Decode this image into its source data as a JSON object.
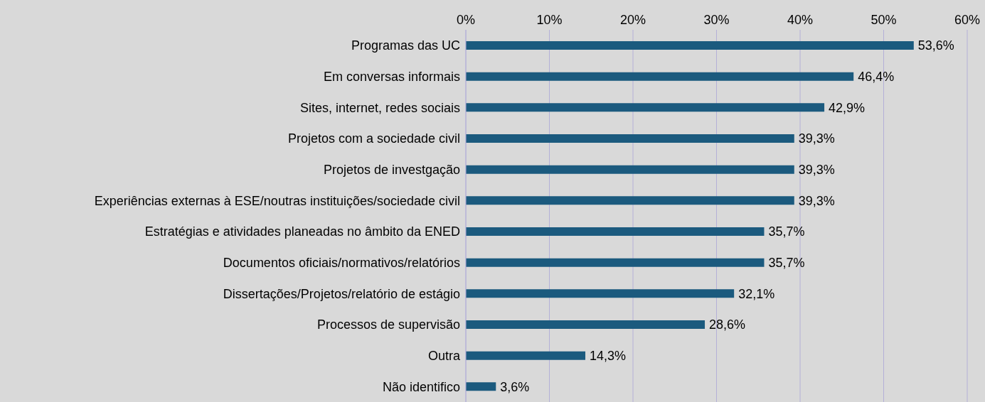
{
  "chart_data": {
    "type": "bar",
    "orientation": "horizontal",
    "categories": [
      "Programas das UC",
      "Em conversas informais",
      "Sites, internet, redes sociais",
      "Projetos com a sociedade civil",
      "Projetos de investgação",
      "Experiências externas à ESE/noutras instituições/sociedade civil",
      "Estratégias e atividades planeadas no âmbito da ENED",
      "Documentos oficiais/normativos/relatórios",
      "Dissertações/Projetos/relatório de estágio",
      "Processos de supervisão",
      "Outra",
      "Não identifico"
    ],
    "values": [
      53.6,
      46.4,
      42.9,
      39.3,
      39.3,
      39.3,
      35.7,
      35.7,
      32.1,
      28.6,
      14.3,
      3.6
    ],
    "value_labels": [
      "53,6%",
      "46,4%",
      "42,9%",
      "39,3%",
      "39,3%",
      "39,3%",
      "35,7%",
      "35,7%",
      "32,1%",
      "28,6%",
      "14,3%",
      "3,6%"
    ],
    "color": "#1b5a7e",
    "xlim": [
      0,
      60
    ],
    "xticks": [
      {
        "value": 0,
        "label": "0%"
      },
      {
        "value": 10,
        "label": "10%"
      },
      {
        "value": 20,
        "label": "20%"
      },
      {
        "value": 30,
        "label": "30%"
      },
      {
        "value": 40,
        "label": "40%"
      },
      {
        "value": 50,
        "label": "50%"
      },
      {
        "value": 60,
        "label": "60%"
      }
    ],
    "grid": "x"
  }
}
